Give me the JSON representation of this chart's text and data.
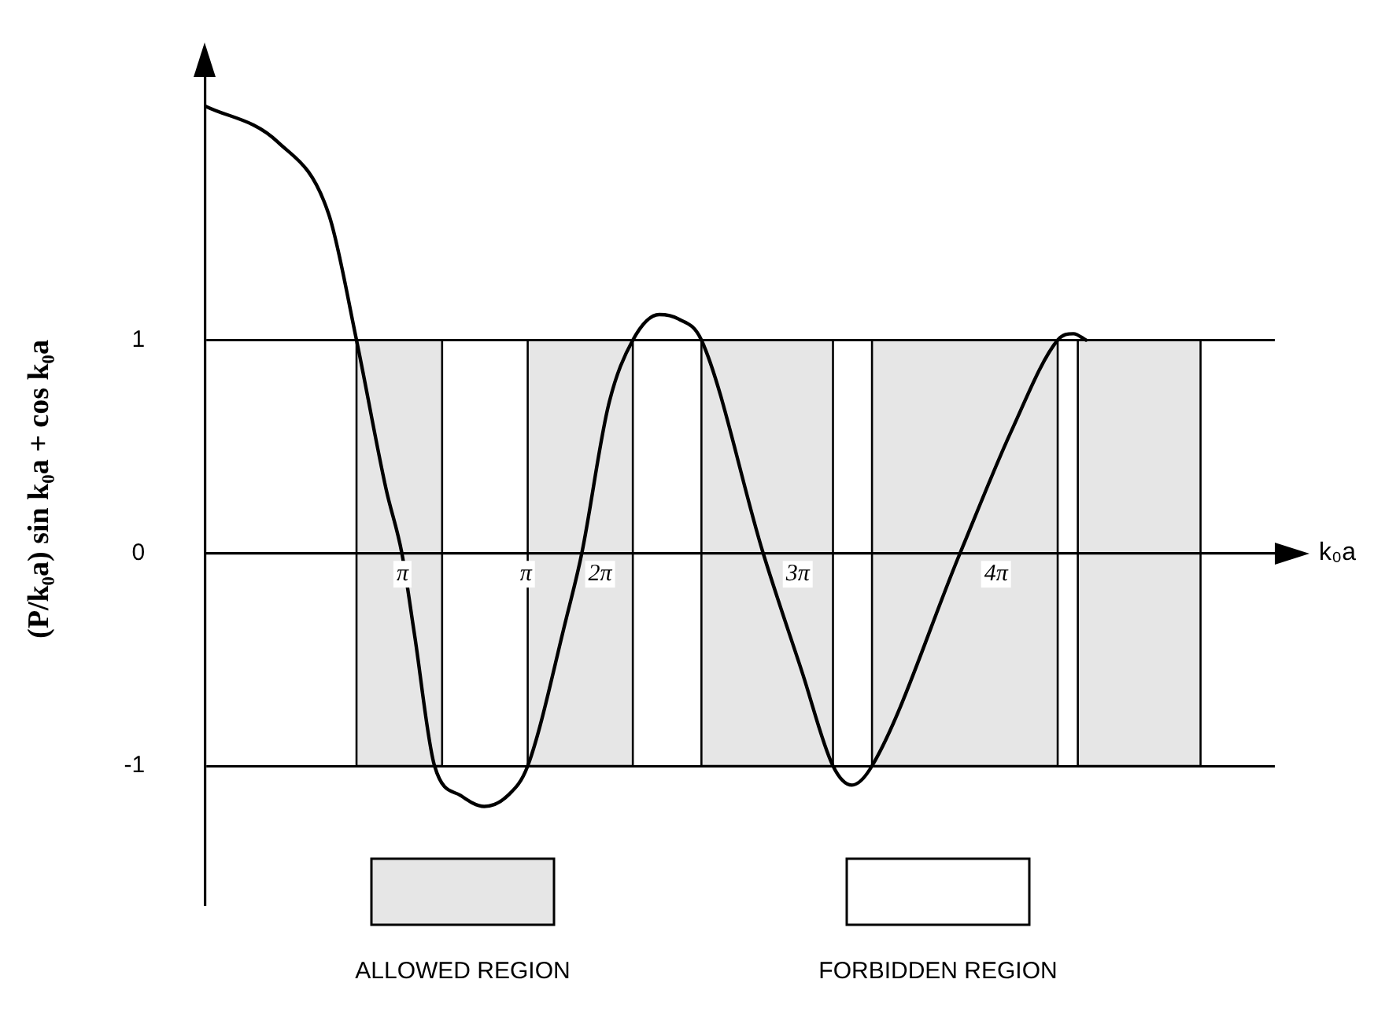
{
  "chart_data": {
    "type": "line",
    "xlabel": "k₀a",
    "ylabel": "(P/k₀a) sin k₀a + cos k₀a",
    "xlim": [
      0,
      17
    ],
    "ylim": [
      -1.65,
      2.25
    ],
    "xticks": [
      {
        "value": 3.14,
        "label": "π"
      },
      {
        "value": 6.28,
        "label": "2π"
      },
      {
        "value": 9.42,
        "label": "3π"
      },
      {
        "value": 12.57,
        "label": "4π"
      }
    ],
    "yticks": [
      -1,
      0,
      1
    ],
    "annotations": [
      {
        "text": "π",
        "x": 5.1,
        "y": 0
      },
      "ALLOWED REGION",
      "FORBIDDEN REGION"
    ],
    "grid": "y",
    "marker": "none",
    "line_style": "solid",
    "series": [
      {
        "color": "#000000",
        "x": [
          0,
          1.16,
          1.97,
          2.41,
          2.88,
          3.13,
          3.33,
          3.65,
          4.07,
          4.44,
          4.81,
          5.13,
          5.74,
          5.99,
          6.41,
          6.8,
          7.22,
          7.52,
          7.89,
          8.87,
          9.49,
          9.98,
          10.28,
          10.6,
          12.0,
          12.81,
          13.55,
          13.8,
          14.0
        ],
        "values": [
          2.1,
          1.93,
          1.59,
          1.0,
          0.3,
          0,
          -0.38,
          -1.0,
          -1.14,
          -1.19,
          -1.14,
          -1.0,
          -0.31,
          0,
          0.69,
          1.0,
          1.12,
          1.1,
          1.0,
          0,
          -0.56,
          -1.0,
          -1.09,
          -1.0,
          0,
          0.57,
          1.0,
          1.03,
          1.0
        ]
      }
    ],
    "bands": [
      {
        "axis": "x",
        "from": 2.41,
        "to": 3.77,
        "color": "#e6e6e6"
      },
      {
        "axis": "x",
        "from": 5.13,
        "to": 6.8,
        "color": "#e6e6e6"
      },
      {
        "axis": "x",
        "from": 7.89,
        "to": 9.98,
        "color": "#e6e6e6"
      },
      {
        "axis": "x",
        "from": 10.6,
        "to": 13.55,
        "color": "#e6e6e6"
      },
      {
        "axis": "x",
        "from": 13.87,
        "to": 15.82,
        "color": "#e6e6e6"
      }
    ]
  }
}
